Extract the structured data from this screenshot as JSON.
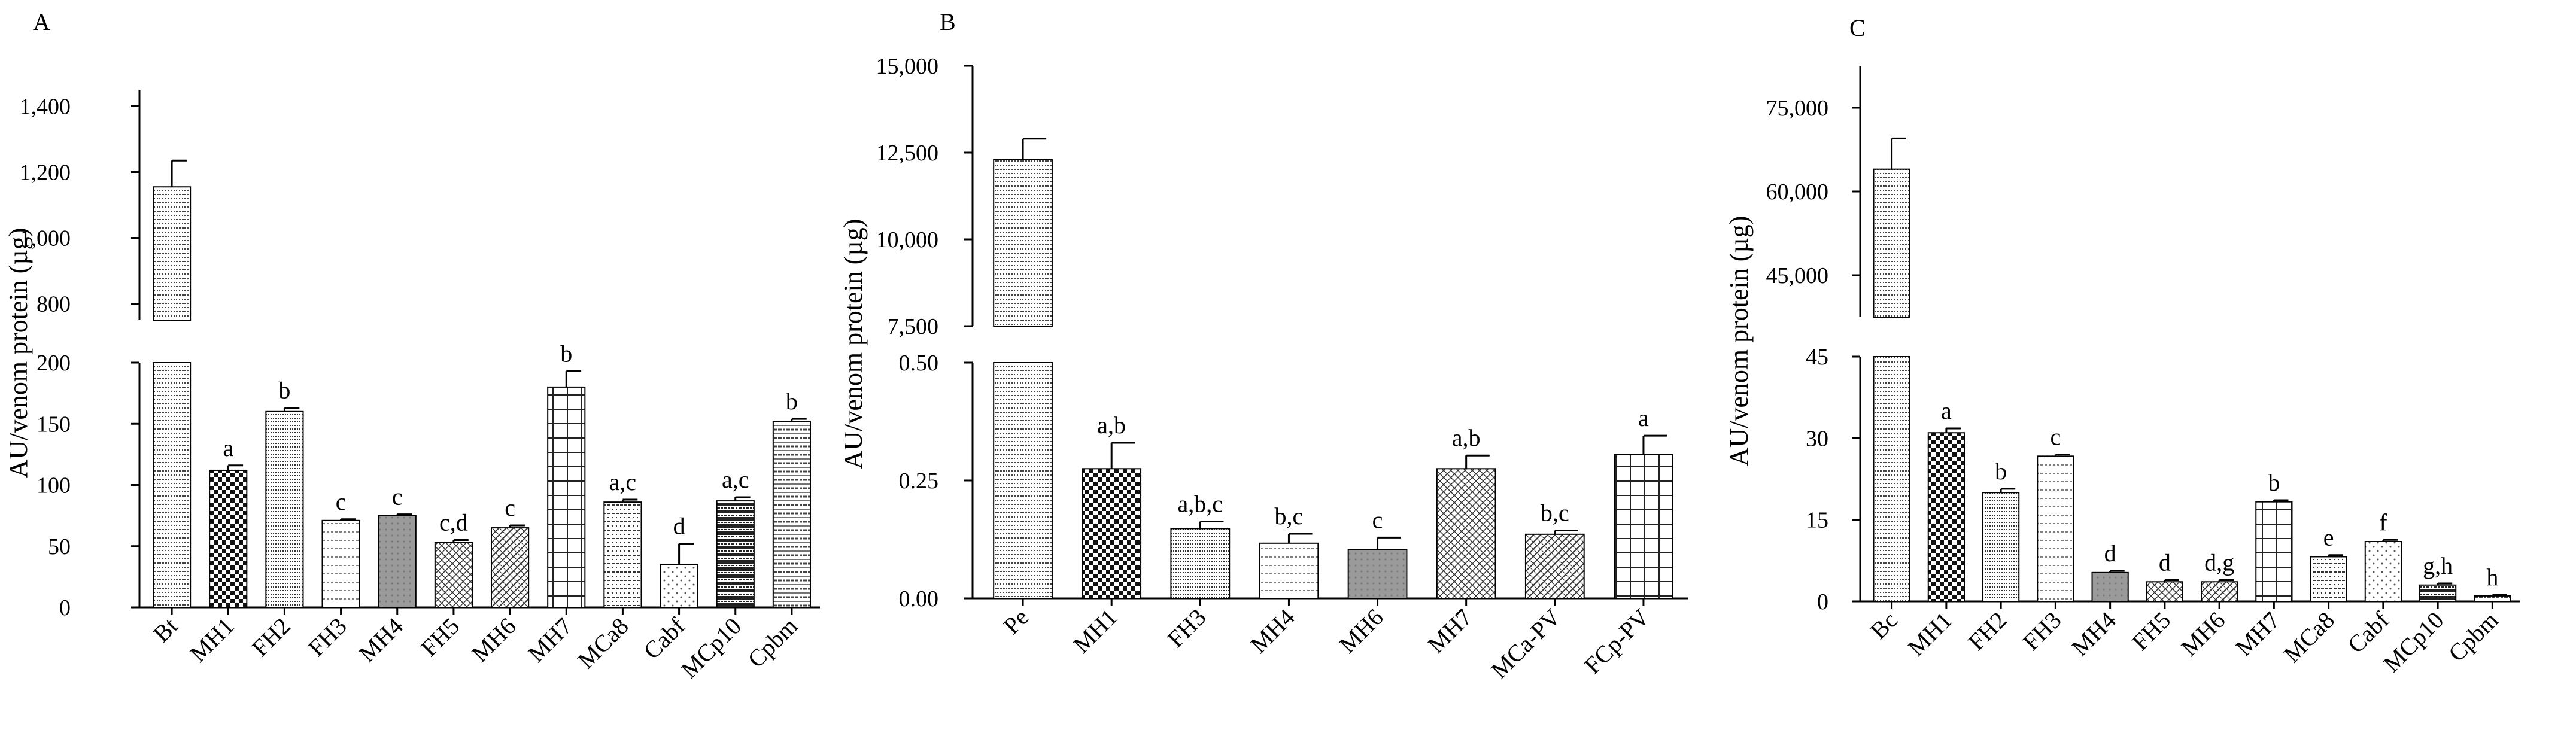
{
  "chart_data": [
    {
      "panel_label": "A",
      "type": "bar",
      "ylabel": "AU/venom protein (µg)",
      "categories": [
        "Bt",
        "MH1",
        "FH2",
        "FH3",
        "MH4",
        "FH5",
        "MH6",
        "MH7",
        "MCa8",
        "Cabf",
        "MCp10",
        "Cpbm"
      ],
      "values": [
        1155,
        112,
        160,
        71,
        75,
        53,
        65,
        180,
        86,
        35,
        87,
        152
      ],
      "errors": [
        80,
        4,
        3,
        1,
        1,
        2,
        2,
        13,
        2,
        17,
        3,
        2
      ],
      "letters": [
        "",
        "a",
        "b",
        "c",
        "c",
        "c,d",
        "c",
        "b",
        "a,c",
        "d",
        "a,c",
        "b"
      ],
      "y_break": {
        "lower_range": [
          0,
          200
        ],
        "upper_range": [
          750,
          1450
        ],
        "lower_ticks": [
          "0",
          "50",
          "100",
          "150",
          "200"
        ],
        "upper_ticks": [
          "800",
          "1,000",
          "1,200",
          "1,400"
        ]
      }
    },
    {
      "panel_label": "B",
      "type": "bar",
      "ylabel": "AU/venom protein (µg)",
      "categories": [
        "Pe",
        "MH1",
        "FH3",
        "MH4",
        "MH6",
        "MH7",
        "MCa-PV",
        "FCp-PV"
      ],
      "values": [
        12300,
        0.275,
        0.148,
        0.117,
        0.104,
        0.275,
        0.136,
        0.305
      ],
      "errors": [
        600,
        0.055,
        0.015,
        0.02,
        0.025,
        0.028,
        0.008,
        0.04
      ],
      "letters": [
        "",
        "a,b",
        "a,b,c",
        "b,c",
        "c",
        "a,b",
        "b,c",
        "a"
      ],
      "y_break": {
        "lower_range": [
          0,
          0.5
        ],
        "upper_range": [
          7500,
          15000
        ],
        "lower_ticks": [
          "0.00",
          "0.25",
          "0.50"
        ],
        "upper_ticks": [
          "7,500",
          "10,000",
          "12,500",
          "15,000"
        ]
      }
    },
    {
      "panel_label": "C",
      "type": "bar",
      "ylabel": "AU/venom protein (µg)",
      "categories": [
        "Bc",
        "MH1",
        "FH2",
        "FH3",
        "MH4",
        "FH5",
        "MH6",
        "MH7",
        "MCa8",
        "Cabf",
        "MCp10",
        "Cpbm"
      ],
      "values": [
        64000,
        31,
        20,
        26.7,
        5.3,
        3.6,
        3.6,
        18.3,
        8.2,
        11,
        3,
        1
      ],
      "errors": [
        5500,
        0.8,
        0.7,
        0.3,
        0.3,
        0.3,
        0.3,
        0.3,
        0.3,
        0.3,
        0.3,
        0.2
      ],
      "letters": [
        "",
        "a",
        "b",
        "c",
        "d",
        "d",
        "d,g",
        "b",
        "e",
        "f",
        "g,h",
        "h"
      ],
      "y_break": {
        "lower_range": [
          0,
          45
        ],
        "upper_range": [
          37500,
          82500
        ],
        "lower_ticks": [
          "0",
          "15",
          "30",
          "45"
        ],
        "upper_ticks": [
          "45,000",
          "60,000",
          "75,000"
        ]
      }
    }
  ]
}
